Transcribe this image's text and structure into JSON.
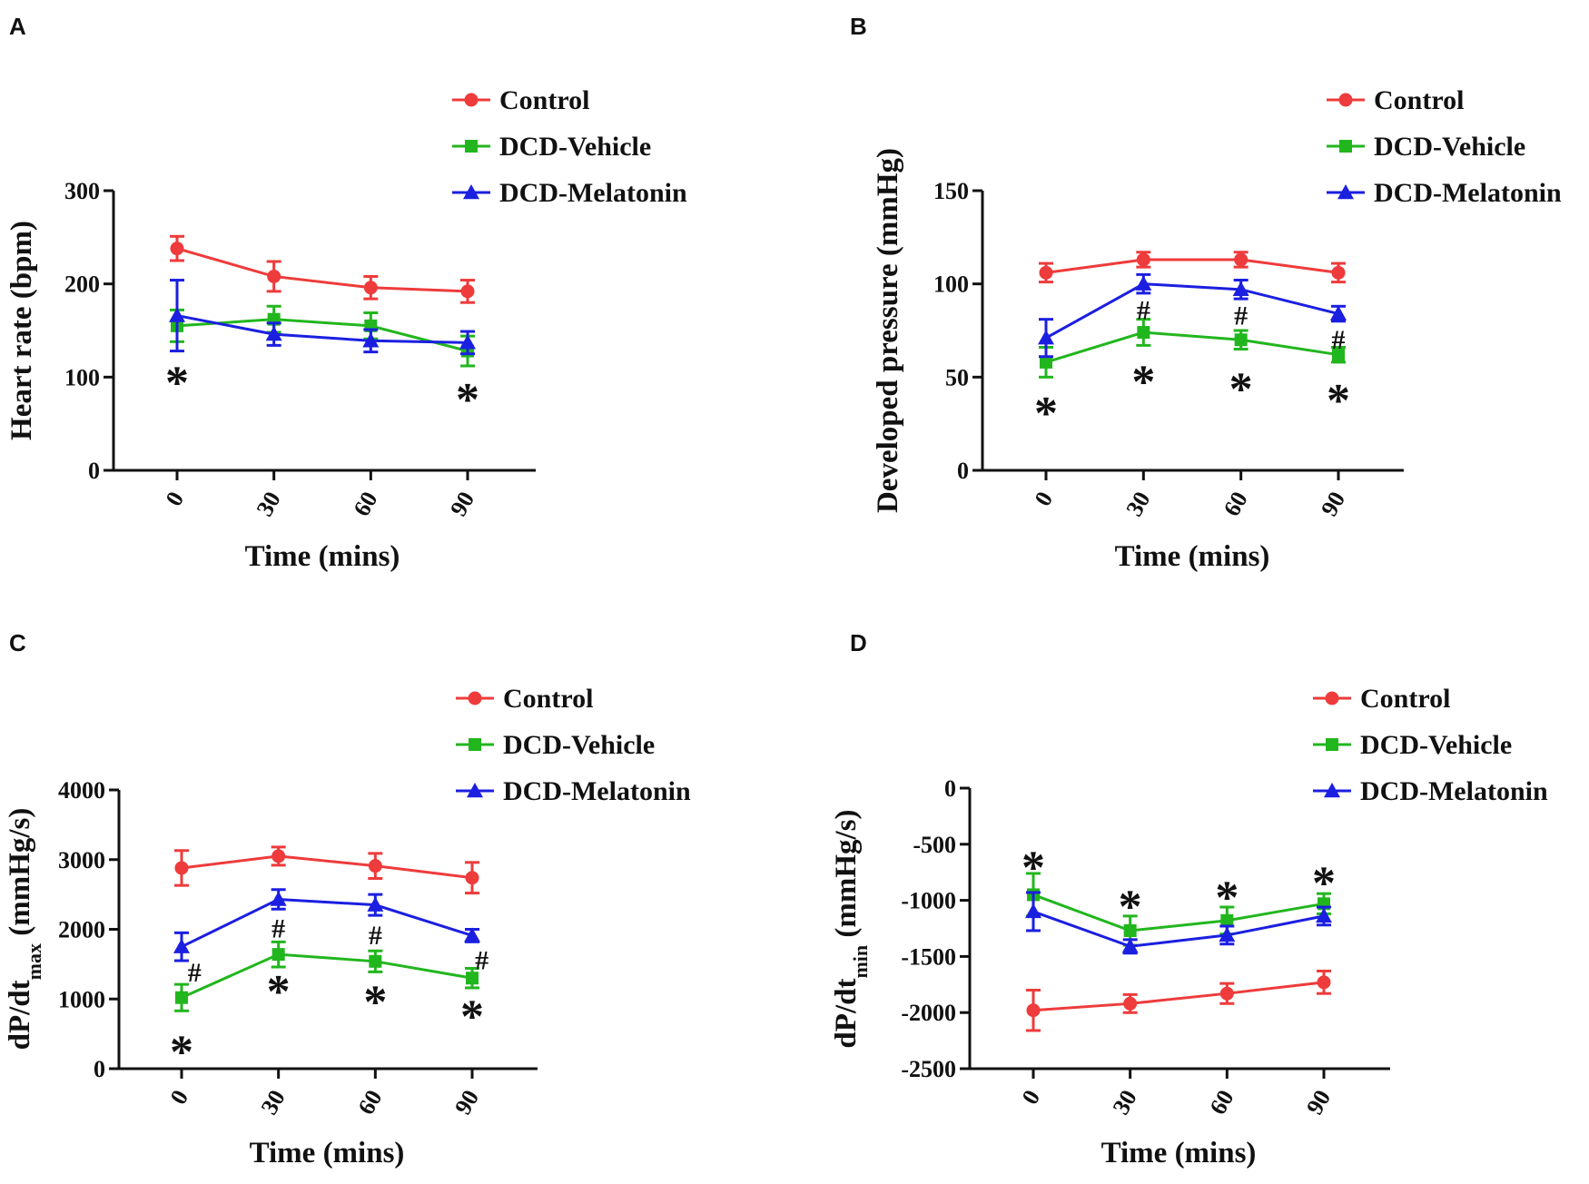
{
  "chart_data": [
    {
      "panel": "A",
      "type": "line",
      "x": [
        0,
        30,
        60,
        90
      ],
      "xtick_labels": [
        "0",
        "30",
        "60",
        "90"
      ],
      "xlabel": "Time (mins)",
      "ylabel": "Heart rate (bpm)",
      "ylim": [
        0,
        300
      ],
      "yticks": [
        0,
        100,
        200,
        300
      ],
      "ytick_labels": [
        "0",
        "100",
        "200",
        "300"
      ],
      "legend": [
        "Control",
        "DCD-Vehicle",
        "DCD-Melatonin"
      ],
      "legend_position": "top-right",
      "series": [
        {
          "name": "Control",
          "color": "#ee3b3b",
          "marker": "circle",
          "values": [
            238,
            208,
            196,
            192
          ],
          "errors": [
            13,
            16,
            12,
            12
          ]
        },
        {
          "name": "DCD-Vehicle",
          "color": "#22b61e",
          "marker": "square",
          "values": [
            155,
            162,
            155,
            128
          ],
          "errors": [
            17,
            14,
            14,
            16
          ]
        },
        {
          "name": "DCD-Melatonin",
          "color": "#1b1fe0",
          "marker": "triangle",
          "values": [
            166,
            146,
            139,
            137
          ],
          "errors": [
            38,
            12,
            12,
            12
          ]
        }
      ],
      "annotations": [
        {
          "text": "*",
          "x": 0,
          "y": 101
        },
        {
          "text": "*",
          "x": 90,
          "y": 83
        }
      ]
    },
    {
      "panel": "B",
      "type": "line",
      "x": [
        0,
        30,
        60,
        90
      ],
      "xtick_labels": [
        "0",
        "30",
        "60",
        "90"
      ],
      "xlabel": "Time (mins)",
      "ylabel": "Developed pressure (mmHg)",
      "ylim": [
        0,
        150
      ],
      "yticks": [
        0,
        50,
        100,
        150
      ],
      "ytick_labels": [
        "0",
        "50",
        "100",
        "150"
      ],
      "legend": [
        "Control",
        "DCD-Vehicle",
        "DCD-Melatonin"
      ],
      "legend_position": "top-right",
      "series": [
        {
          "name": "Control",
          "color": "#ee3b3b",
          "marker": "circle",
          "values": [
            106,
            113,
            113,
            106
          ],
          "errors": [
            5,
            4,
            4,
            5
          ]
        },
        {
          "name": "DCD-Vehicle",
          "color": "#22b61e",
          "marker": "square",
          "values": [
            58,
            74,
            70,
            62
          ],
          "errors": [
            8,
            7,
            5,
            4
          ]
        },
        {
          "name": "DCD-Melatonin",
          "color": "#1b1fe0",
          "marker": "triangle",
          "values": [
            71,
            100,
            97,
            84
          ],
          "errors": [
            10,
            5,
            5,
            4
          ]
        }
      ],
      "annotations": [
        {
          "text": "*",
          "x": 0,
          "y": 34
        },
        {
          "text": "*",
          "x": 30,
          "y": 51
        },
        {
          "text": "*",
          "x": 60,
          "y": 47
        },
        {
          "text": "*",
          "x": 90,
          "y": 41
        },
        {
          "text": "#",
          "x": 30,
          "y": 87
        },
        {
          "text": "#",
          "x": 60,
          "y": 84
        },
        {
          "text": "#",
          "x": 90,
          "y": 71
        }
      ]
    },
    {
      "panel": "C",
      "type": "line",
      "x": [
        0,
        30,
        60,
        90
      ],
      "xtick_labels": [
        "0",
        "30",
        "60",
        "90"
      ],
      "xlabel": "Time (mins)",
      "ylabel": "dP/dt",
      "ylabel_subscript": "max",
      "ylabel_unit": " (mmHg/s)",
      "ylim": [
        0,
        4000
      ],
      "yticks": [
        0,
        1000,
        2000,
        3000,
        4000
      ],
      "ytick_labels": [
        "0",
        "1000",
        "2000",
        "3000",
        "4000"
      ],
      "legend": [
        "Control",
        "DCD-Vehicle",
        "DCD-Melatonin"
      ],
      "legend_position": "top-right",
      "series": [
        {
          "name": "Control",
          "color": "#ee3b3b",
          "marker": "circle",
          "values": [
            2880,
            3050,
            2910,
            2740
          ],
          "errors": [
            250,
            130,
            180,
            220
          ]
        },
        {
          "name": "DCD-Vehicle",
          "color": "#22b61e",
          "marker": "square",
          "values": [
            1020,
            1640,
            1540,
            1300
          ],
          "errors": [
            190,
            180,
            150,
            140
          ]
        },
        {
          "name": "DCD-Melatonin",
          "color": "#1b1fe0",
          "marker": "triangle",
          "values": [
            1750,
            2430,
            2350,
            1910
          ],
          "errors": [
            200,
            140,
            150,
            90
          ]
        }
      ],
      "annotations": [
        {
          "text": "*",
          "x": 0,
          "y": 330
        },
        {
          "text": "*",
          "x": 30,
          "y": 1200
        },
        {
          "text": "*",
          "x": 60,
          "y": 1050
        },
        {
          "text": "*",
          "x": 90,
          "y": 840
        },
        {
          "text": "#",
          "x": 4,
          "y": 1410
        },
        {
          "text": "#",
          "x": 30,
          "y": 2040
        },
        {
          "text": "#",
          "x": 60,
          "y": 1940
        },
        {
          "text": "#",
          "x": 93,
          "y": 1580
        }
      ]
    },
    {
      "panel": "D",
      "type": "line",
      "x": [
        0,
        30,
        60,
        90
      ],
      "xtick_labels": [
        "0",
        "30",
        "60",
        "90"
      ],
      "xlabel": "Time (mins)",
      "ylabel": "dP/dt",
      "ylabel_subscript": "min",
      "ylabel_unit": " (mmHg/s)",
      "ylim": [
        -2500,
        0
      ],
      "yticks": [
        -2500,
        -2000,
        -1500,
        -1000,
        -500,
        0
      ],
      "ytick_labels": [
        "-2500",
        "-2000",
        "-1500",
        "-1000",
        "-500",
        "0"
      ],
      "legend": [
        "Control",
        "DCD-Vehicle",
        "DCD-Melatonin"
      ],
      "legend_position": "top-right",
      "series": [
        {
          "name": "Control",
          "color": "#ee3b3b",
          "marker": "circle",
          "values": [
            -1980,
            -1920,
            -1830,
            -1730
          ],
          "errors": [
            180,
            80,
            90,
            100
          ]
        },
        {
          "name": "DCD-Vehicle",
          "color": "#22b61e",
          "marker": "square",
          "values": [
            -950,
            -1270,
            -1180,
            -1030
          ],
          "errors": [
            190,
            130,
            120,
            90
          ]
        },
        {
          "name": "DCD-Melatonin",
          "color": "#1b1fe0",
          "marker": "triangle",
          "values": [
            -1100,
            -1410,
            -1310,
            -1140
          ],
          "errors": [
            170,
            60,
            80,
            80
          ]
        }
      ],
      "annotations": [
        {
          "text": "*",
          "x": 0,
          "y": -650
        },
        {
          "text": "*",
          "x": 30,
          "y": -1000
        },
        {
          "text": "*",
          "x": 60,
          "y": -920
        },
        {
          "text": "*",
          "x": 90,
          "y": -790
        }
      ]
    }
  ]
}
